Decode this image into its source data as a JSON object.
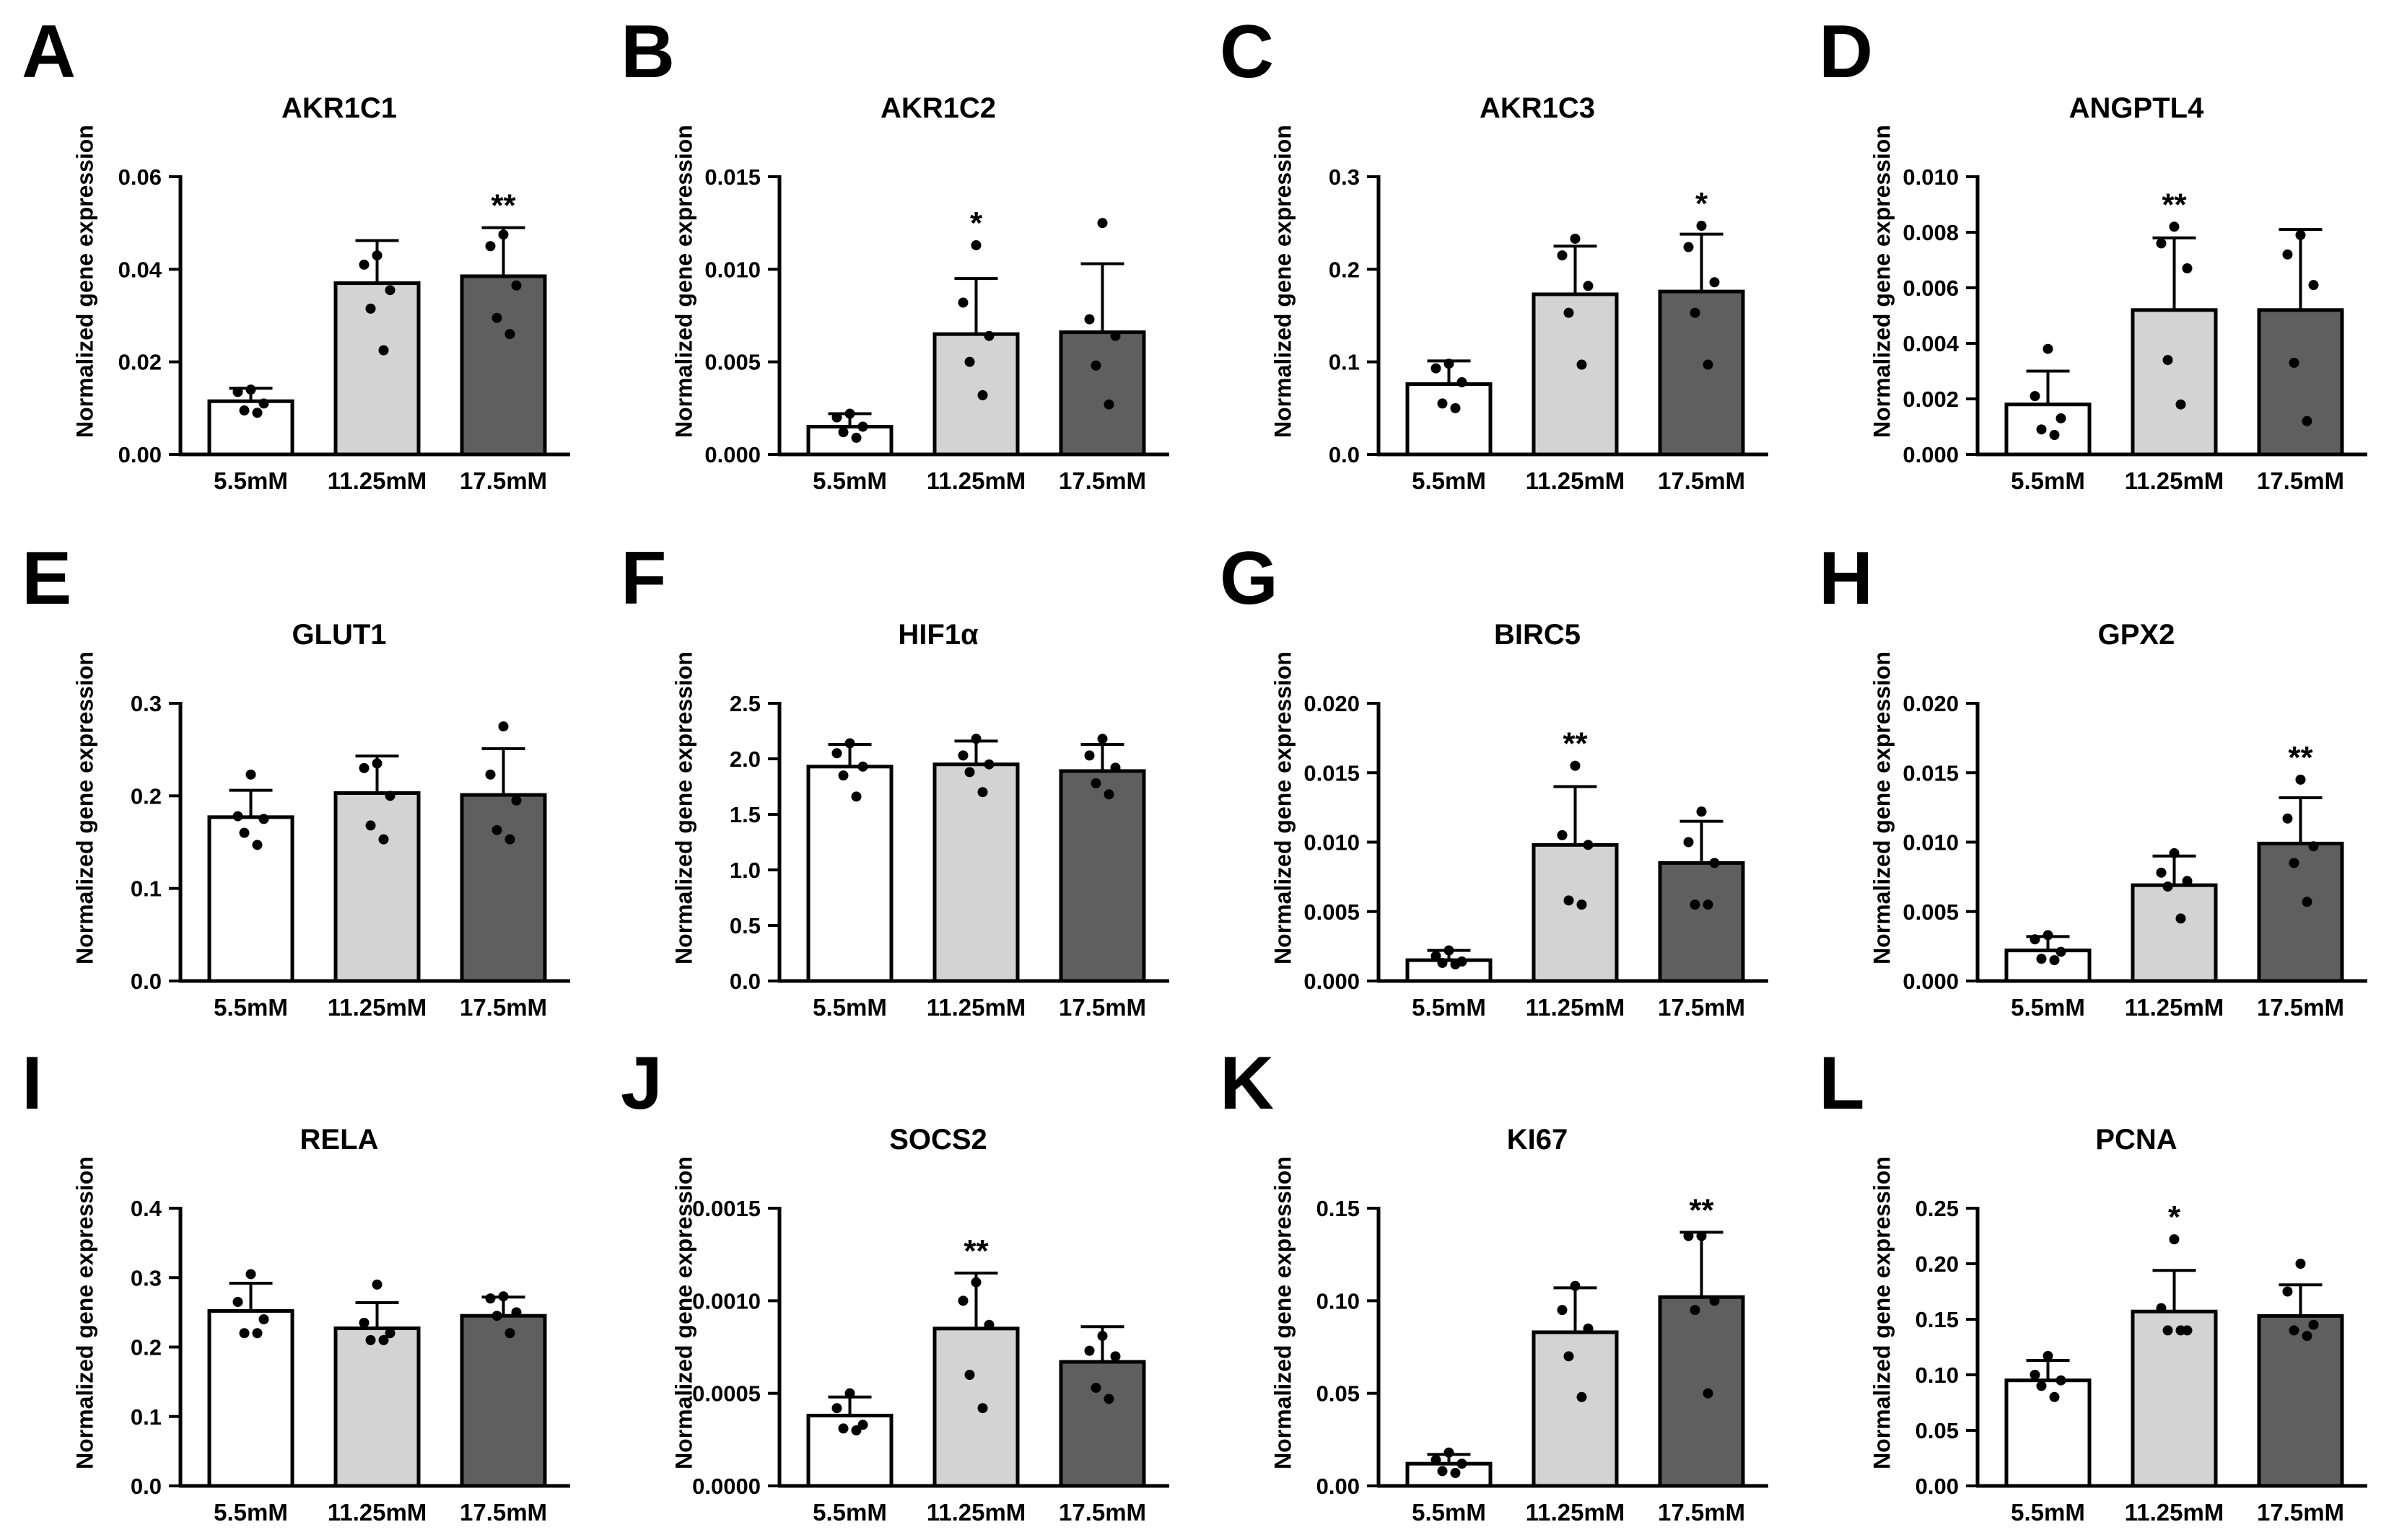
{
  "chart_data": [
    {
      "letter": "A",
      "title": "AKR1C1",
      "type": "bar",
      "ylabel": "Normalized gene expression",
      "categories": [
        "5.5mM",
        "11.25mM",
        "17.5mM"
      ],
      "ylim": [
        0,
        0.06
      ],
      "yticks": [
        "0.00",
        "0.02",
        "0.04",
        "0.06"
      ],
      "colors": [
        "#ffffff",
        "#d3d3d3",
        "#5f5f5f"
      ],
      "values": [
        0.0115,
        0.037,
        0.0385
      ],
      "sd": [
        0.0028,
        0.0092,
        0.0105
      ],
      "points": [
        [
          0.014,
          0.0135,
          0.011,
          0.0095,
          0.009
        ],
        [
          0.043,
          0.041,
          0.0355,
          0.0315,
          0.0225
        ],
        [
          0.0475,
          0.045,
          0.0365,
          0.0295,
          0.026
        ]
      ],
      "sig": [
        "",
        "",
        "**"
      ]
    },
    {
      "letter": "B",
      "title": "AKR1C2",
      "type": "bar",
      "ylabel": "Normalized gene expression",
      "categories": [
        "5.5mM",
        "11.25mM",
        "17.5mM"
      ],
      "ylim": [
        0,
        0.015
      ],
      "yticks": [
        "0.000",
        "0.005",
        "0.010",
        "0.015"
      ],
      "colors": [
        "#ffffff",
        "#d3d3d3",
        "#5f5f5f"
      ],
      "values": [
        0.0015,
        0.0065,
        0.0066
      ],
      "sd": [
        0.0007,
        0.003,
        0.0037
      ],
      "points": [
        [
          0.0022,
          0.002,
          0.0015,
          0.0012,
          0.0009
        ],
        [
          0.0113,
          0.0082,
          0.0064,
          0.005,
          0.0032
        ],
        [
          0.0125,
          0.0073,
          0.0064,
          0.0048,
          0.0027
        ]
      ],
      "sig": [
        "",
        "*",
        ""
      ]
    },
    {
      "letter": "C",
      "title": "AKR1C3",
      "type": "bar",
      "ylabel": "Normalized gene expression",
      "categories": [
        "5.5mM",
        "11.25mM",
        "17.5mM"
      ],
      "ylim": [
        0,
        0.3
      ],
      "yticks": [
        "0.0",
        "0.1",
        "0.2",
        "0.3"
      ],
      "colors": [
        "#ffffff",
        "#d3d3d3",
        "#5f5f5f"
      ],
      "values": [
        0.076,
        0.173,
        0.176
      ],
      "sd": [
        0.025,
        0.052,
        0.062
      ],
      "points": [
        [
          0.098,
          0.093,
          0.078,
          0.055,
          0.05
        ],
        [
          0.233,
          0.215,
          0.182,
          0.153,
          0.097
        ],
        [
          0.247,
          0.224,
          0.186,
          0.153,
          0.097
        ]
      ],
      "sig": [
        "",
        "",
        "*"
      ]
    },
    {
      "letter": "D",
      "title": "ANGPTL4",
      "type": "bar",
      "ylabel": "Normalized gene expression",
      "categories": [
        "5.5mM",
        "11.25mM",
        "17.5mM"
      ],
      "ylim": [
        0,
        0.01
      ],
      "yticks": [
        "0.000",
        "0.002",
        "0.004",
        "0.006",
        "0.008",
        "0.010"
      ],
      "colors": [
        "#ffffff",
        "#d3d3d3",
        "#5f5f5f"
      ],
      "values": [
        0.0018,
        0.0052,
        0.0052
      ],
      "sd": [
        0.0012,
        0.0026,
        0.0029
      ],
      "points": [
        [
          0.0038,
          0.0021,
          0.0013,
          0.0009,
          0.0007
        ],
        [
          0.0082,
          0.0076,
          0.0067,
          0.0034,
          0.0018
        ],
        [
          0.0079,
          0.0072,
          0.0061,
          0.0033,
          0.0012
        ]
      ],
      "sig": [
        "",
        "**",
        ""
      ]
    },
    {
      "letter": "E",
      "title": "GLUT1",
      "type": "bar",
      "ylabel": "Normalized gene expression",
      "categories": [
        "5.5mM",
        "11.25mM",
        "17.5mM"
      ],
      "ylim": [
        0,
        0.3
      ],
      "yticks": [
        "0.0",
        "0.1",
        "0.2",
        "0.3"
      ],
      "colors": [
        "#ffffff",
        "#d3d3d3",
        "#5f5f5f"
      ],
      "values": [
        0.177,
        0.203,
        0.201
      ],
      "sd": [
        0.029,
        0.04,
        0.05
      ],
      "points": [
        [
          0.223,
          0.178,
          0.175,
          0.16,
          0.147
        ],
        [
          0.235,
          0.23,
          0.2,
          0.168,
          0.153
        ],
        [
          0.275,
          0.223,
          0.195,
          0.163,
          0.153
        ]
      ],
      "sig": [
        "",
        "",
        ""
      ]
    },
    {
      "letter": "F",
      "title": "HIF1α",
      "type": "bar",
      "ylabel": "Normalized gene expression",
      "categories": [
        "5.5mM",
        "11.25mM",
        "17.5mM"
      ],
      "ylim": [
        0,
        2.5
      ],
      "yticks": [
        "0.0",
        "0.5",
        "1.0",
        "1.5",
        "2.0",
        "2.5"
      ],
      "colors": [
        "#ffffff",
        "#d3d3d3",
        "#5f5f5f"
      ],
      "values": [
        1.93,
        1.95,
        1.89
      ],
      "sd": [
        0.2,
        0.21,
        0.24
      ],
      "points": [
        [
          2.14,
          2.05,
          1.93,
          1.85,
          1.66
        ],
        [
          2.18,
          2.03,
          1.95,
          1.88,
          1.7
        ],
        [
          2.18,
          2.03,
          1.92,
          1.78,
          1.68
        ]
      ],
      "sig": [
        "",
        "",
        ""
      ]
    },
    {
      "letter": "G",
      "title": "BIRC5",
      "type": "bar",
      "ylabel": "Normalized gene expression",
      "categories": [
        "5.5mM",
        "11.25mM",
        "17.5mM"
      ],
      "ylim": [
        0,
        0.02
      ],
      "yticks": [
        "0.000",
        "0.005",
        "0.010",
        "0.015",
        "0.020"
      ],
      "colors": [
        "#ffffff",
        "#d3d3d3",
        "#5f5f5f"
      ],
      "values": [
        0.0015,
        0.0098,
        0.0085
      ],
      "sd": [
        0.0007,
        0.0042,
        0.003
      ],
      "points": [
        [
          0.0022,
          0.0018,
          0.0014,
          0.0013,
          0.0012
        ],
        [
          0.0155,
          0.0105,
          0.0098,
          0.0058,
          0.0055
        ],
        [
          0.0122,
          0.01,
          0.0085,
          0.0055,
          0.0055
        ]
      ],
      "sig": [
        "",
        "**",
        ""
      ]
    },
    {
      "letter": "H",
      "title": "GPX2",
      "type": "bar",
      "ylabel": "Normalized gene expression",
      "categories": [
        "5.5mM",
        "11.25mM",
        "17.5mM"
      ],
      "ylim": [
        0,
        0.02
      ],
      "yticks": [
        "0.000",
        "0.005",
        "0.010",
        "0.015",
        "0.020"
      ],
      "colors": [
        "#ffffff",
        "#d3d3d3",
        "#5f5f5f"
      ],
      "values": [
        0.0022,
        0.0069,
        0.0099
      ],
      "sd": [
        0.001,
        0.0021,
        0.0033
      ],
      "points": [
        [
          0.0033,
          0.003,
          0.0021,
          0.0016,
          0.0015
        ],
        [
          0.0092,
          0.0078,
          0.0072,
          0.0068,
          0.0045
        ],
        [
          0.0145,
          0.0117,
          0.0097,
          0.0085,
          0.0057
        ]
      ],
      "sig": [
        "",
        "",
        "**"
      ]
    },
    {
      "letter": "I",
      "title": "RELA",
      "type": "bar",
      "ylabel": "Normalized gene expression",
      "categories": [
        "5.5mM",
        "11.25mM",
        "17.5mM"
      ],
      "ylim": [
        0,
        0.4
      ],
      "yticks": [
        "0.0",
        "0.1",
        "0.2",
        "0.3",
        "0.4"
      ],
      "colors": [
        "#ffffff",
        "#d3d3d3",
        "#5f5f5f"
      ],
      "values": [
        0.252,
        0.227,
        0.245
      ],
      "sd": [
        0.04,
        0.037,
        0.027
      ],
      "points": [
        [
          0.305,
          0.265,
          0.24,
          0.22,
          0.22
        ],
        [
          0.29,
          0.235,
          0.22,
          0.21,
          0.21
        ],
        [
          0.273,
          0.27,
          0.25,
          0.245,
          0.22
        ]
      ],
      "sig": [
        "",
        "",
        ""
      ]
    },
    {
      "letter": "J",
      "title": "SOCS2",
      "type": "bar",
      "ylabel": "Normalized gene expression",
      "categories": [
        "5.5mM",
        "11.25mM",
        "17.5mM"
      ],
      "ylim": [
        0,
        0.0015
      ],
      "yticks": [
        "0.0000",
        "0.0005",
        "0.0010",
        "0.0015"
      ],
      "colors": [
        "#ffffff",
        "#d3d3d3",
        "#5f5f5f"
      ],
      "values": [
        0.00038,
        0.00085,
        0.00067
      ],
      "sd": [
        0.0001,
        0.0003,
        0.00019
      ],
      "points": [
        [
          0.0005,
          0.00042,
          0.00033,
          0.00031,
          0.0003
        ],
        [
          0.0011,
          0.001,
          0.00087,
          0.0006,
          0.00042
        ],
        [
          0.00081,
          0.00073,
          0.0007,
          0.00053,
          0.00047
        ]
      ],
      "sig": [
        "",
        "**",
        ""
      ]
    },
    {
      "letter": "K",
      "title": "KI67",
      "type": "bar",
      "ylabel": "Normalized gene expression",
      "categories": [
        "5.5mM",
        "11.25mM",
        "17.5mM"
      ],
      "ylim": [
        0,
        0.15
      ],
      "yticks": [
        "0.00",
        "0.05",
        "0.10",
        "0.15"
      ],
      "colors": [
        "#ffffff",
        "#d3d3d3",
        "#5f5f5f"
      ],
      "values": [
        0.012,
        0.083,
        0.102
      ],
      "sd": [
        0.005,
        0.024,
        0.035
      ],
      "points": [
        [
          0.018,
          0.014,
          0.012,
          0.008,
          0.007
        ],
        [
          0.108,
          0.095,
          0.085,
          0.07,
          0.048
        ],
        [
          0.135,
          0.135,
          0.1,
          0.095,
          0.05
        ]
      ],
      "sig": [
        "",
        "",
        "**"
      ]
    },
    {
      "letter": "L",
      "title": "PCNA",
      "type": "bar",
      "ylabel": "Normalized gene expression",
      "categories": [
        "5.5mM",
        "11.25mM",
        "17.5mM"
      ],
      "ylim": [
        0,
        0.25
      ],
      "yticks": [
        "0.00",
        "0.05",
        "0.10",
        "0.15",
        "0.20",
        "0.25"
      ],
      "colors": [
        "#ffffff",
        "#d3d3d3",
        "#5f5f5f"
      ],
      "values": [
        0.095,
        0.157,
        0.153
      ],
      "sd": [
        0.018,
        0.037,
        0.028
      ],
      "points": [
        [
          0.117,
          0.1,
          0.095,
          0.09,
          0.08
        ],
        [
          0.222,
          0.16,
          0.14,
          0.14,
          0.14
        ],
        [
          0.2,
          0.175,
          0.145,
          0.14,
          0.135
        ]
      ],
      "sig": [
        "",
        "*",
        ""
      ]
    }
  ]
}
